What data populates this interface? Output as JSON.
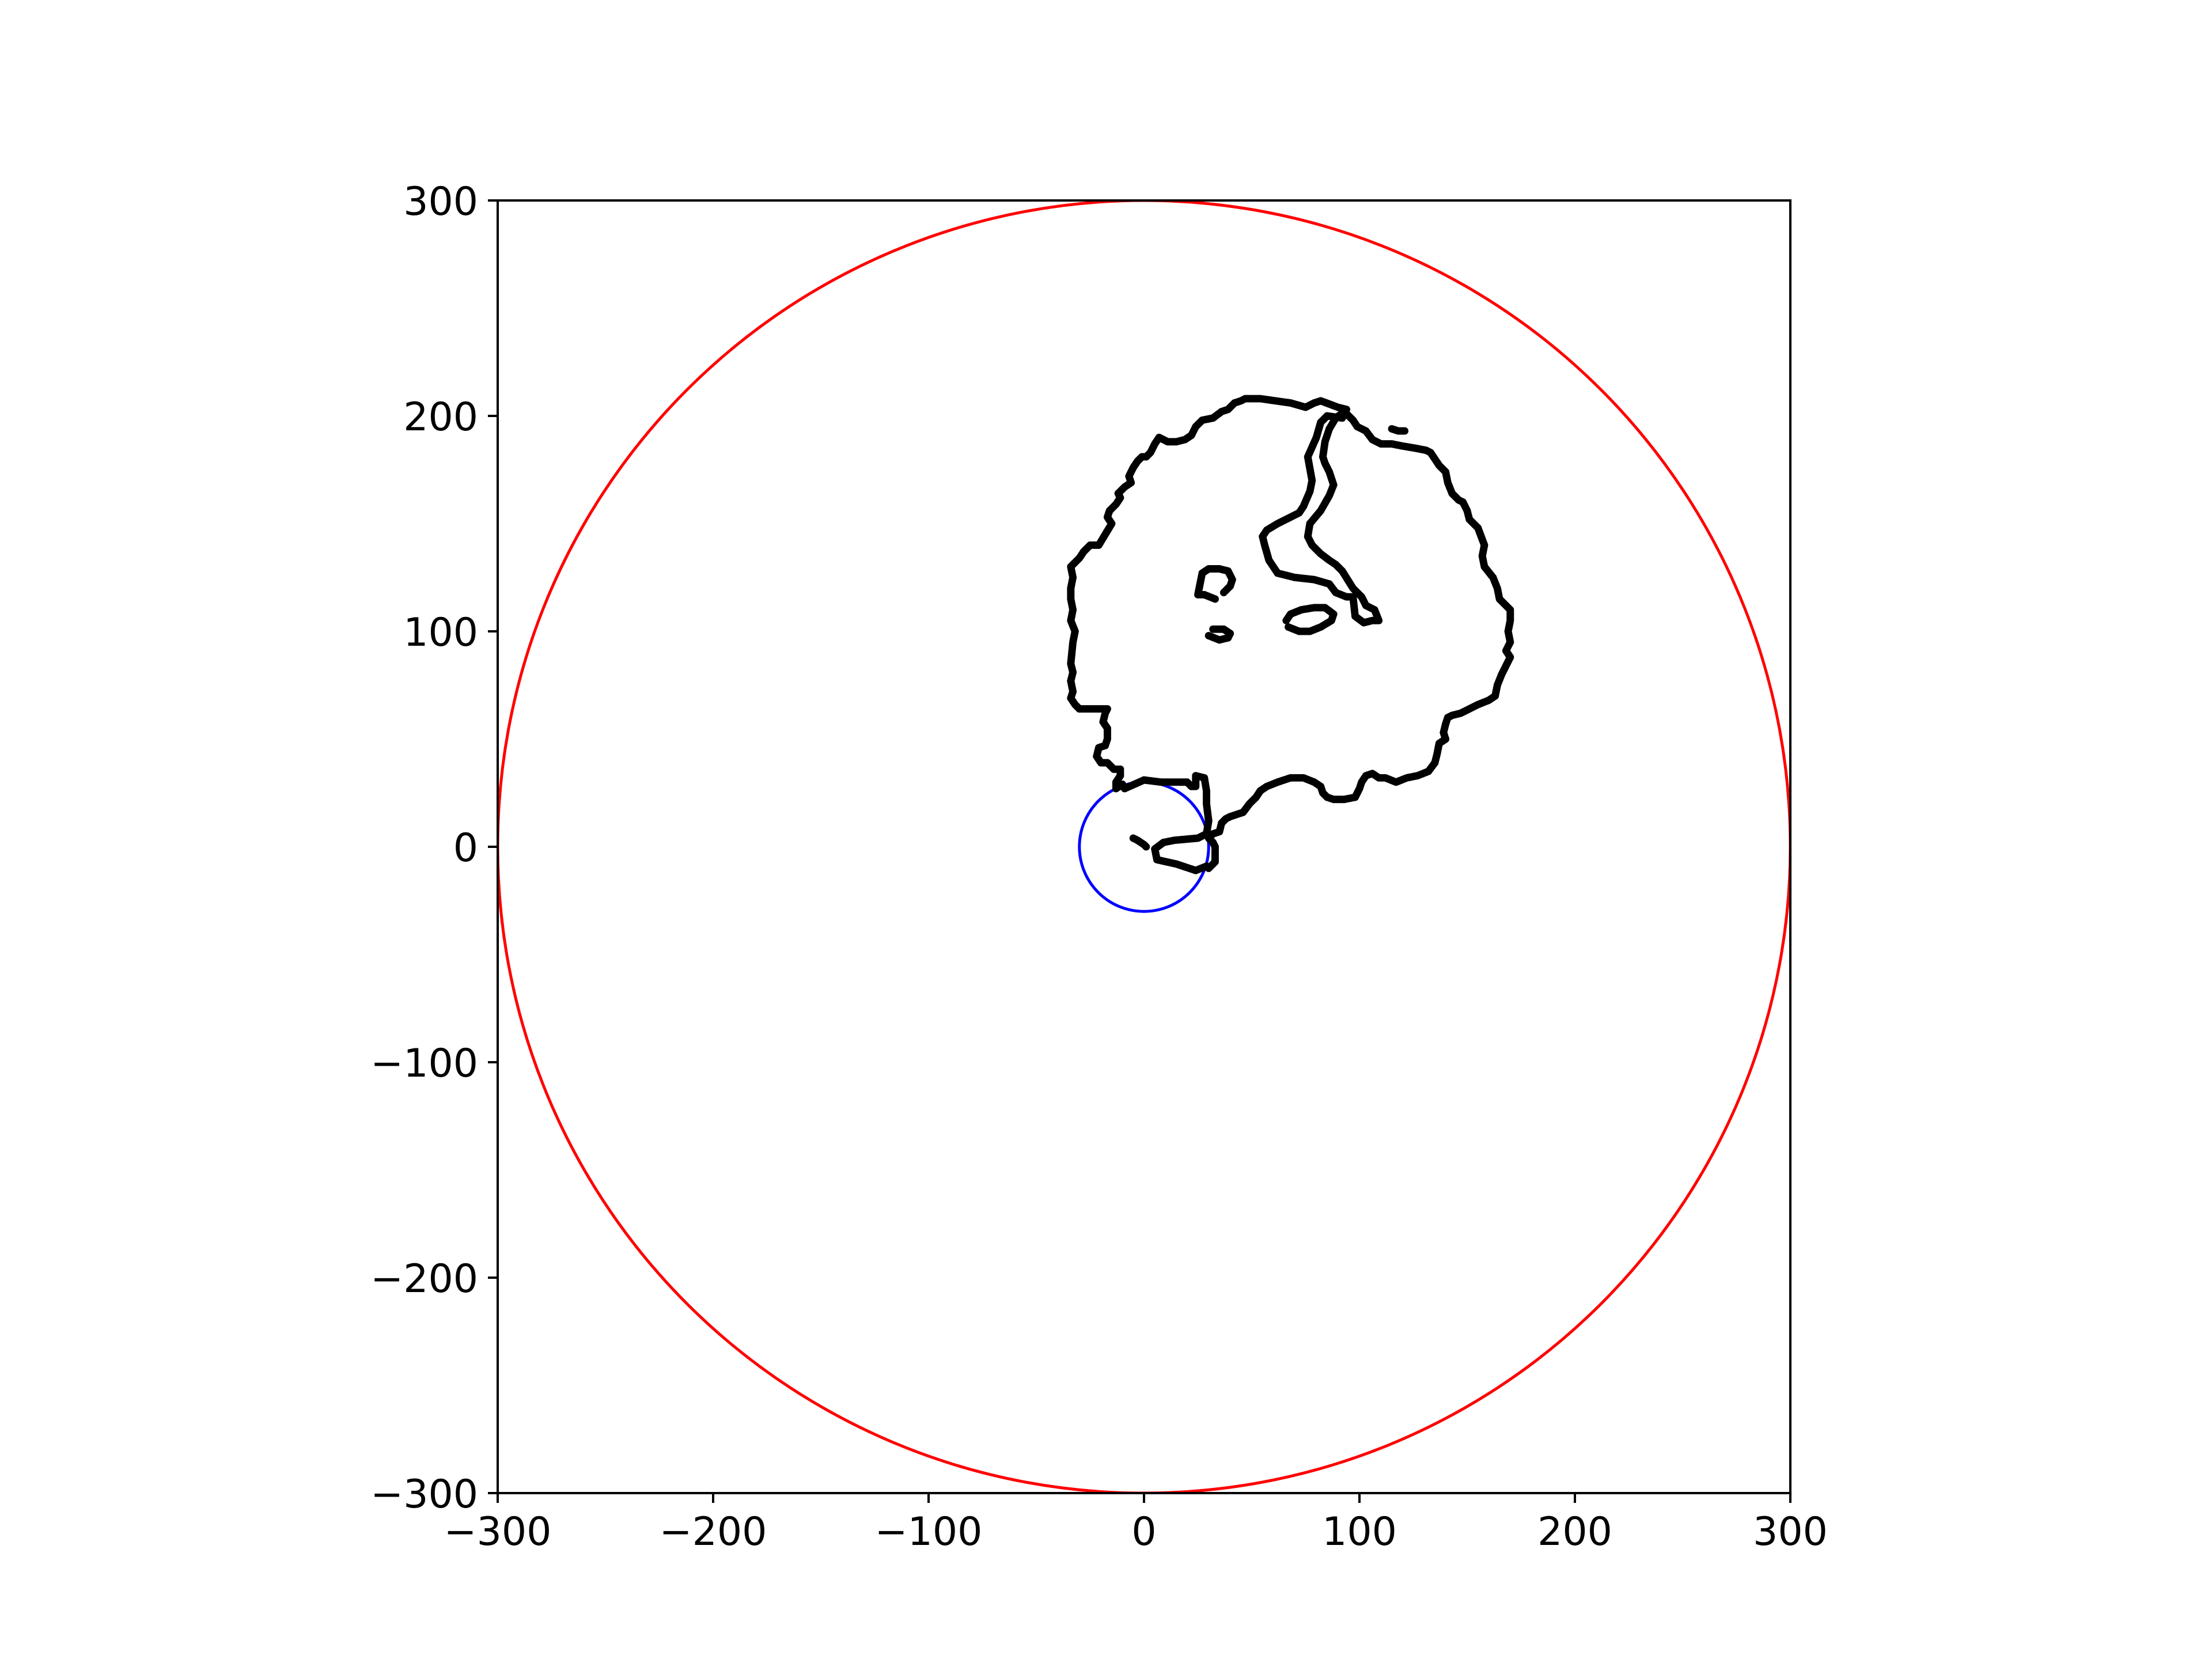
{
  "chart_data": {
    "type": "scatter",
    "title": "",
    "xlabel": "",
    "ylabel": "",
    "xlim": [
      -300,
      300
    ],
    "ylim": [
      -300,
      300
    ],
    "aspect": "equal",
    "grid": false,
    "legend": "none",
    "x_ticks": [
      -300,
      -200,
      -100,
      0,
      100,
      200,
      300
    ],
    "y_ticks": [
      -300,
      -200,
      -100,
      0,
      100,
      200,
      300
    ],
    "x_tick_labels": [
      "−300",
      "−200",
      "−100",
      "0",
      "100",
      "200",
      "300"
    ],
    "y_tick_labels": [
      "−300",
      "−200",
      "−100",
      "0",
      "100",
      "200",
      "300"
    ],
    "circles": [
      {
        "cx": 0,
        "cy": 0,
        "r": 300,
        "color": "#ff0000"
      },
      {
        "cx": 0,
        "cy": 0,
        "r": 30,
        "color": "#0000ff"
      }
    ],
    "point_color": "#000000",
    "series": [
      {
        "values": [
          [
            29,
            -9
          ],
          [
            24,
            -11
          ],
          [
            15,
            -8
          ],
          [
            6,
            -6
          ],
          [
            5,
            -1
          ],
          [
            9,
            2
          ],
          [
            14,
            3
          ],
          [
            25,
            4
          ],
          [
            29,
            6
          ],
          [
            30,
            12
          ],
          [
            29,
            20
          ],
          [
            29,
            26
          ],
          [
            28,
            32
          ],
          [
            24,
            33
          ],
          [
            24,
            28
          ],
          [
            22,
            28
          ],
          [
            20,
            30
          ],
          [
            14,
            30
          ],
          [
            8,
            30
          ],
          [
            0,
            31
          ],
          [
            -9,
            27
          ],
          [
            -10,
            29
          ],
          [
            -13,
            27
          ],
          [
            -13,
            30
          ],
          [
            -11,
            33
          ],
          [
            -11,
            36
          ],
          [
            -14,
            36
          ],
          [
            -17,
            39
          ],
          [
            -20,
            39
          ],
          [
            -22,
            42
          ],
          [
            -21,
            46
          ],
          [
            -18,
            47
          ],
          [
            -17,
            50
          ],
          [
            -17,
            55
          ],
          [
            -19,
            58
          ],
          [
            -18,
            62
          ],
          [
            -17,
            64
          ],
          [
            -20,
            64
          ],
          [
            -30,
            64
          ],
          [
            -32,
            66
          ],
          [
            -34,
            69
          ],
          [
            -33,
            72
          ],
          [
            -34,
            77
          ],
          [
            -33,
            81
          ],
          [
            -34,
            85
          ],
          [
            -33,
            95
          ],
          [
            -32,
            100
          ],
          [
            -34,
            105
          ],
          [
            -33,
            110
          ],
          [
            -34,
            115
          ],
          [
            -34,
            120
          ],
          [
            -33,
            125
          ],
          [
            -34,
            130
          ],
          [
            -30,
            134
          ],
          [
            -28,
            137
          ],
          [
            -25,
            140
          ],
          [
            -21,
            140
          ],
          [
            -18,
            145
          ],
          [
            -15,
            150
          ],
          [
            -17,
            153
          ],
          [
            -16,
            156
          ],
          [
            -13,
            159
          ],
          [
            -11,
            162
          ],
          [
            -12,
            164
          ],
          [
            -9,
            167
          ],
          [
            -6,
            169
          ],
          [
            -7,
            172
          ],
          [
            -5,
            176
          ],
          [
            -3,
            179
          ],
          [
            -1,
            181
          ],
          [
            1,
            181
          ],
          [
            3,
            183
          ],
          [
            5,
            187
          ],
          [
            7,
            190
          ],
          [
            11,
            188
          ],
          [
            15,
            188
          ],
          [
            19,
            189
          ],
          [
            22,
            191
          ],
          [
            24,
            195
          ],
          [
            27,
            198
          ],
          [
            32,
            199
          ],
          [
            36,
            202
          ],
          [
            39,
            203
          ],
          [
            42,
            206
          ],
          [
            45,
            207
          ],
          [
            47,
            208
          ],
          [
            54,
            208
          ],
          [
            61,
            207
          ],
          [
            68,
            206
          ],
          [
            75,
            204
          ],
          [
            79,
            206
          ],
          [
            82,
            207
          ],
          [
            90,
            204
          ],
          [
            94,
            203
          ],
          [
            92,
            199
          ],
          [
            85,
            200
          ],
          [
            82,
            197
          ],
          [
            80,
            190
          ],
          [
            76,
            181
          ],
          [
            78,
            170
          ],
          [
            77,
            165
          ],
          [
            74,
            158
          ],
          [
            72,
            155
          ],
          [
            68,
            153
          ],
          [
            62,
            150
          ],
          [
            57,
            147
          ],
          [
            55,
            144
          ],
          [
            56,
            140
          ],
          [
            58,
            133
          ],
          [
            62,
            127
          ],
          [
            70,
            125
          ],
          [
            79,
            124
          ],
          [
            86,
            122
          ],
          [
            89,
            118
          ],
          [
            94,
            116
          ],
          [
            97,
            116
          ],
          [
            98,
            107
          ],
          [
            102,
            104
          ],
          [
            106,
            105
          ],
          [
            109,
            105
          ],
          [
            107,
            110
          ],
          [
            103,
            112
          ],
          [
            101,
            116
          ],
          [
            97,
            120
          ],
          [
            92,
            128
          ],
          [
            89,
            131
          ],
          [
            86,
            133
          ],
          [
            82,
            136
          ],
          [
            78,
            140
          ],
          [
            76,
            144
          ],
          [
            77,
            150
          ],
          [
            82,
            156
          ],
          [
            86,
            163
          ],
          [
            88,
            168
          ],
          [
            86,
            174
          ],
          [
            84,
            178
          ],
          [
            83,
            181
          ],
          [
            84,
            188
          ],
          [
            86,
            194
          ],
          [
            89,
            199
          ],
          [
            93,
            202
          ],
          [
            97,
            198
          ],
          [
            99,
            195
          ],
          [
            103,
            193
          ],
          [
            106,
            189
          ],
          [
            110,
            187
          ],
          [
            115,
            187
          ],
          [
            120,
            186
          ],
          [
            126,
            185
          ],
          [
            131,
            184
          ],
          [
            133,
            183
          ],
          [
            137,
            177
          ],
          [
            140,
            174
          ],
          [
            141,
            169
          ],
          [
            143,
            164
          ],
          [
            146,
            161
          ],
          [
            148,
            160
          ],
          [
            150,
            156
          ],
          [
            151,
            152
          ],
          [
            155,
            148
          ],
          [
            158,
            140
          ],
          [
            157,
            135
          ],
          [
            158,
            130
          ],
          [
            162,
            125
          ],
          [
            164,
            120
          ],
          [
            165,
            115
          ],
          [
            168,
            112
          ],
          [
            170,
            110
          ],
          [
            170,
            105
          ],
          [
            169,
            100
          ],
          [
            170,
            95
          ],
          [
            168,
            91
          ],
          [
            170,
            88
          ],
          [
            167,
            82
          ],
          [
            166,
            80
          ],
          [
            164,
            75
          ],
          [
            163,
            70
          ],
          [
            160,
            68
          ],
          [
            155,
            66
          ],
          [
            151,
            64
          ],
          [
            147,
            62
          ],
          [
            143,
            61
          ],
          [
            141,
            60
          ],
          [
            140,
            57
          ],
          [
            139,
            53
          ],
          [
            140,
            50
          ],
          [
            137,
            48
          ],
          [
            136,
            43
          ],
          [
            135,
            39
          ],
          [
            132,
            35
          ],
          [
            127,
            33
          ],
          [
            122,
            32
          ],
          [
            117,
            30
          ],
          [
            112,
            32
          ],
          [
            109,
            32
          ],
          [
            106,
            34
          ],
          [
            103,
            33
          ],
          [
            101,
            30
          ],
          [
            100,
            27
          ],
          [
            98,
            23
          ],
          [
            93,
            22
          ],
          [
            88,
            22
          ],
          [
            85,
            23
          ],
          [
            83,
            25
          ],
          [
            82,
            28
          ],
          [
            79,
            30
          ],
          [
            74,
            32
          ],
          [
            68,
            32
          ],
          [
            62,
            30
          ],
          [
            57,
            28
          ],
          [
            54,
            26
          ],
          [
            52,
            23
          ],
          [
            49,
            20
          ],
          [
            46,
            16
          ],
          [
            43,
            15
          ],
          [
            40,
            14
          ],
          [
            38,
            13
          ],
          [
            36,
            11
          ],
          [
            35,
            7
          ],
          [
            32,
            6
          ],
          [
            30,
            4
          ],
          [
            32,
            2
          ],
          [
            33,
            0
          ],
          [
            33,
            -3
          ],
          [
            33,
            -7
          ],
          [
            30,
            -10
          ],
          [
            33,
            115
          ],
          [
            28,
            117
          ],
          [
            25,
            117
          ],
          [
            26,
            122
          ],
          [
            27,
            127
          ],
          [
            30,
            129
          ],
          [
            35,
            129
          ],
          [
            39,
            128
          ],
          [
            41,
            124
          ],
          [
            40,
            121
          ],
          [
            37,
            118
          ],
          [
            30,
            98
          ],
          [
            35,
            96
          ],
          [
            39,
            97
          ],
          [
            40,
            99
          ],
          [
            37,
            101
          ],
          [
            32,
            101
          ],
          [
            67,
            102
          ],
          [
            72,
            100
          ],
          [
            77,
            100
          ],
          [
            82,
            102
          ],
          [
            87,
            105
          ],
          [
            88,
            108
          ],
          [
            84,
            111
          ],
          [
            79,
            111
          ],
          [
            73,
            110
          ],
          [
            68,
            108
          ],
          [
            66,
            105
          ],
          [
            115,
            194
          ],
          [
            118,
            193
          ],
          [
            121,
            193
          ],
          [
            -5,
            4
          ],
          [
            -3,
            3
          ],
          [
            0,
            1
          ],
          [
            1,
            0
          ]
        ]
      }
    ]
  }
}
